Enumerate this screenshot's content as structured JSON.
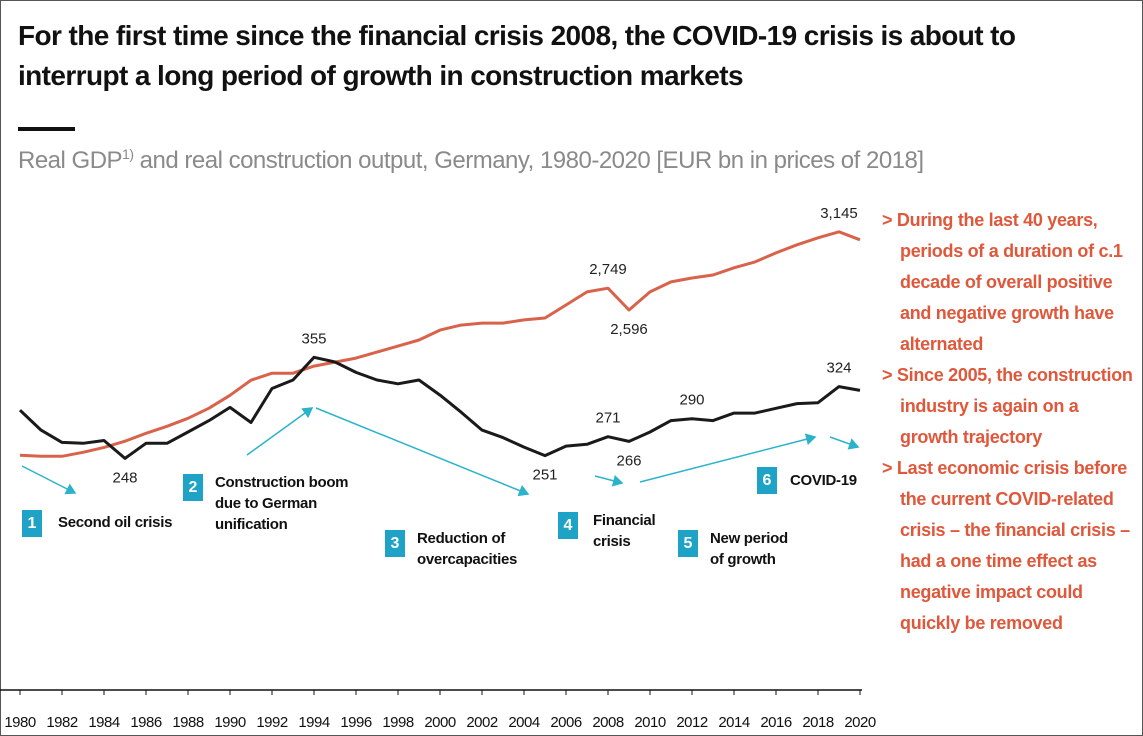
{
  "chart_data": {
    "type": "line",
    "title": "For the first time since the financial crisis 2008, the COVID-19 crisis is about to interrupt a long period of growth in construction markets",
    "subtitle": {
      "before": "Real GDP",
      "footnote": "1)",
      "after": " and real construction output, Germany, 1980-2020 [EUR bn in prices of 2018]"
    },
    "x": [
      1980,
      1981,
      1982,
      1983,
      1984,
      1985,
      1986,
      1987,
      1988,
      1989,
      1990,
      1991,
      1992,
      1993,
      1994,
      1995,
      1996,
      1997,
      1998,
      1999,
      2000,
      2001,
      2002,
      2003,
      2004,
      2005,
      2006,
      2007,
      2008,
      2009,
      2010,
      2011,
      2012,
      2013,
      2014,
      2015,
      2016,
      2017,
      2018,
      2019,
      2020
    ],
    "xlim": [
      1980,
      2020
    ],
    "xticks": [
      1980,
      1982,
      1984,
      1986,
      1988,
      1990,
      1992,
      1994,
      1996,
      1998,
      2000,
      2002,
      2004,
      2006,
      2008,
      2010,
      2012,
      2014,
      2016,
      2018,
      2020
    ],
    "ylim": [
      1500,
      3200
    ],
    "y2lim": [
      240,
      496
    ],
    "series": [
      {
        "name": "Real GDP",
        "color": "#d9634a",
        "values": [
          1575,
          1568,
          1568,
          1596,
          1631,
          1674,
          1730,
          1779,
          1835,
          1906,
          1997,
          2103,
          2152,
          2152,
          2202,
          2230,
          2258,
          2300,
          2342,
          2385,
          2455,
          2490,
          2504,
          2504,
          2526,
          2540,
          2631,
          2723,
          2749,
          2596,
          2723,
          2793,
          2821,
          2842,
          2892,
          2934,
          2997,
          3054,
          3103,
          3145,
          3089
        ],
        "value_labels": [
          null,
          null,
          null,
          null,
          null,
          null,
          null,
          null,
          null,
          null,
          null,
          null,
          null,
          null,
          null,
          null,
          null,
          null,
          null,
          null,
          null,
          null,
          null,
          null,
          null,
          null,
          null,
          null,
          "2,749",
          "2,596",
          null,
          null,
          null,
          null,
          null,
          null,
          null,
          null,
          null,
          "3,145",
          null
        ]
      },
      {
        "name": "Real construction output",
        "color": "#1a1a1a",
        "axis": "y2",
        "values": [
          299,
          278,
          265,
          264,
          267,
          248,
          264,
          264,
          276,
          288,
          302,
          286,
          322,
          331,
          355,
          350,
          339,
          331,
          327,
          331,
          315,
          297,
          278,
          270,
          260,
          251,
          261,
          263,
          271,
          266,
          276,
          288,
          290,
          288,
          296,
          296,
          301,
          306,
          307,
          324,
          320
        ],
        "value_labels": [
          null,
          null,
          null,
          null,
          null,
          "248",
          null,
          null,
          null,
          null,
          null,
          null,
          null,
          null,
          "355",
          null,
          null,
          null,
          null,
          null,
          null,
          null,
          null,
          null,
          null,
          "251",
          null,
          null,
          "271",
          "266",
          null,
          null,
          "290",
          null,
          null,
          null,
          null,
          null,
          null,
          "324",
          null
        ]
      }
    ],
    "annotations": [
      {
        "number": "1",
        "text": "Second oil crisis"
      },
      {
        "number": "2",
        "text": "Construction boom due to German unification"
      },
      {
        "number": "3",
        "text": "Reduction of overcapacities"
      },
      {
        "number": "4",
        "text": "Financial crisis"
      },
      {
        "number": "5",
        "text": "New period of growth"
      },
      {
        "number": "6",
        "text": "COVID-19"
      }
    ],
    "notes": [
      "During the last 40 years, periods of a duration of c.1 decade of overall positive and negative growth have alternated",
      "Since 2005, the construction industry is again on a growth trajectory",
      "Last economic crisis before the current COVID-related crisis – the financial crisis – had a one time effect as negative impact could quickly be removed"
    ]
  }
}
